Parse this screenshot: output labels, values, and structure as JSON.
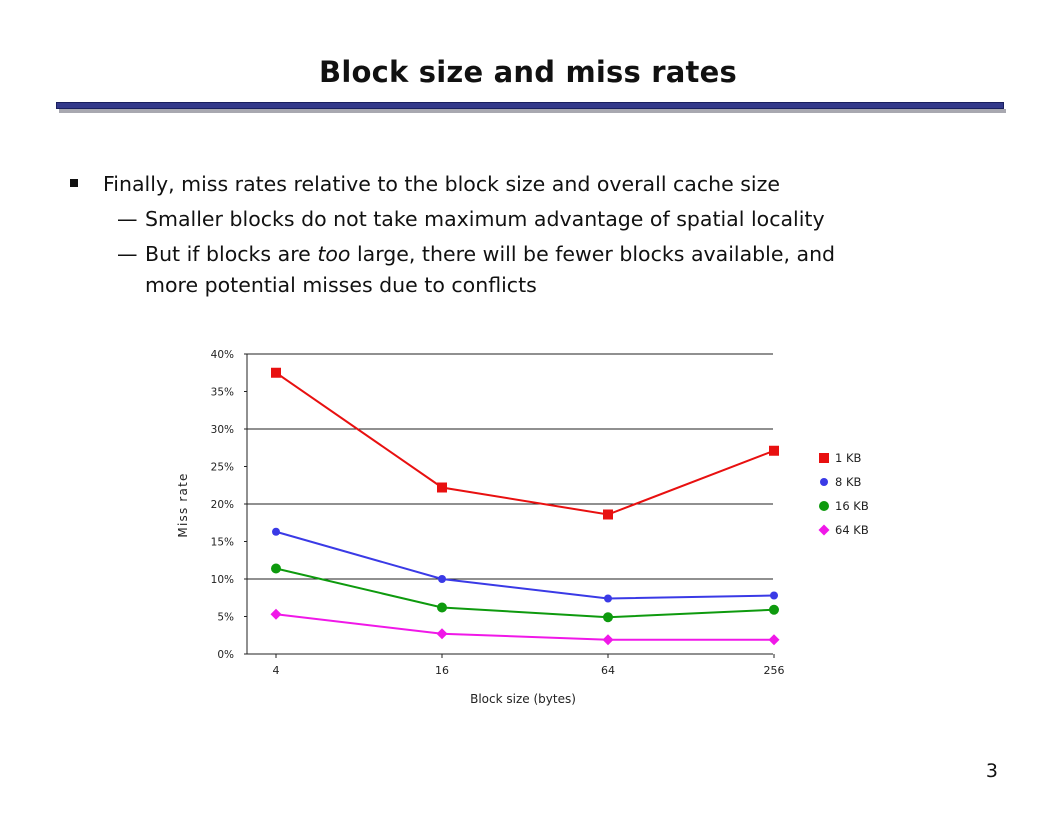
{
  "slide": {
    "title": "Block size and miss rates",
    "bullets": {
      "main": "Finally, miss rates relative to the block size and overall cache size",
      "sub1": "Smaller blocks do not take maximum advantage of spatial locality",
      "sub2_before": "But if blocks are ",
      "sub2_em": "too",
      "sub2_after": " large, there will be fewer blocks available, and",
      "sub2_wrap": "more potential misses due to conflicts",
      "dash": "—"
    },
    "page_number": "3"
  },
  "chart_data": {
    "type": "line",
    "xlabel": "Block size (bytes)",
    "ylabel": "Miss rate",
    "categories": [
      "4",
      "16",
      "64",
      "256"
    ],
    "ylim": [
      0,
      40
    ],
    "yticks": [
      "0%",
      "5%",
      "10%",
      "15%",
      "20%",
      "25%",
      "30%",
      "35%",
      "40%"
    ],
    "grid": "major lines at 0%, 10%, 20%, 30%, 40%",
    "legend_position": "right",
    "series": [
      {
        "name": "1 KB",
        "color": "#e81010",
        "marker": "square",
        "values": [
          37.5,
          22.2,
          18.6,
          27.1
        ]
      },
      {
        "name": "8 KB",
        "color": "#3a3ae6",
        "marker": "circle",
        "values": [
          16.3,
          10.0,
          7.4,
          7.8
        ]
      },
      {
        "name": "16 KB",
        "color": "#0e9a0e",
        "marker": "circle",
        "values": [
          11.4,
          6.2,
          4.9,
          5.9
        ]
      },
      {
        "name": "64 KB",
        "color": "#f018e8",
        "marker": "diamond",
        "values": [
          5.3,
          2.7,
          1.9,
          1.9
        ]
      }
    ]
  }
}
